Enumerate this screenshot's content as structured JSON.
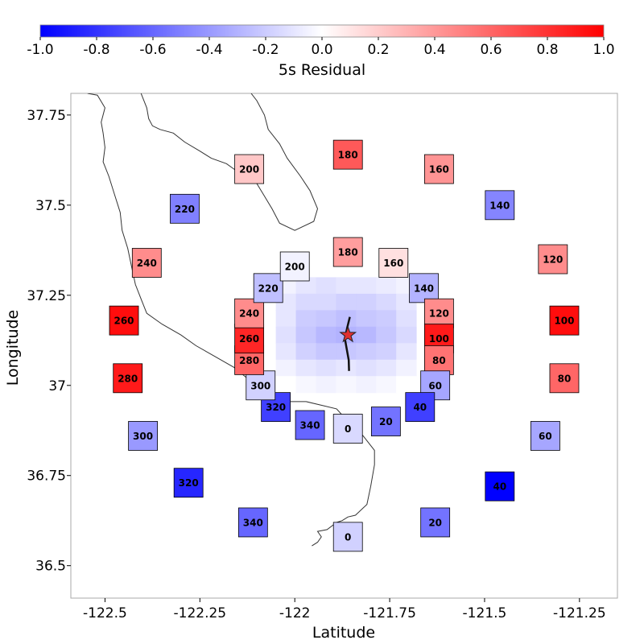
{
  "chart_data": {
    "type": "scatter",
    "xlabel": "Latitude",
    "ylabel": "Longitude",
    "xlim": [
      -122.59,
      -121.15
    ],
    "ylim": [
      36.41,
      37.81
    ],
    "xticks": [
      "-122.5",
      "-122.25",
      "-122",
      "-121.75",
      "-121.5",
      "-121.25"
    ],
    "xtick_values": [
      -122.5,
      -122.25,
      -122.0,
      -121.75,
      -121.5,
      -121.25
    ],
    "yticks": [
      "36.5",
      "36.75",
      "37",
      "37.25",
      "37.5",
      "37.75"
    ],
    "ytick_values": [
      36.5,
      36.75,
      37.0,
      37.25,
      37.5,
      37.75
    ],
    "grid": false,
    "colorbar": {
      "label": "5s Residual",
      "range": [
        -1.0,
        1.0
      ],
      "ticks": [
        "-1.0",
        "-0.8",
        "-0.6",
        "-0.4",
        "-0.2",
        "0.0",
        "0.2",
        "0.4",
        "0.6",
        "0.8",
        "1.0"
      ],
      "tick_values": [
        -1.0,
        -0.8,
        -0.6,
        -0.4,
        -0.2,
        0.0,
        0.2,
        0.4,
        0.6,
        0.8,
        1.0
      ],
      "colormap": "bwr",
      "low_color": "#0000ff",
      "mid_color": "#ffffff",
      "high_color": "#ff0000",
      "position": "top"
    },
    "outer_ring": [
      {
        "label": "180",
        "x": -121.86,
        "y": 37.64,
        "residual": 0.65
      },
      {
        "label": "160",
        "x": -121.62,
        "y": 37.6,
        "residual": 0.42
      },
      {
        "label": "140",
        "x": -121.46,
        "y": 37.5,
        "residual": -0.48
      },
      {
        "label": "120",
        "x": -121.32,
        "y": 37.35,
        "residual": 0.45
      },
      {
        "label": "100",
        "x": -121.29,
        "y": 37.18,
        "residual": 0.95
      },
      {
        "label": "80",
        "x": -121.29,
        "y": 37.02,
        "residual": 0.6
      },
      {
        "label": "60",
        "x": -121.34,
        "y": 36.86,
        "residual": -0.35
      },
      {
        "label": "40",
        "x": -121.46,
        "y": 36.72,
        "residual": -1.0
      },
      {
        "label": "20",
        "x": -121.63,
        "y": 36.62,
        "residual": -0.55
      },
      {
        "label": "0",
        "x": -121.86,
        "y": 36.58,
        "residual": -0.18
      },
      {
        "label": "340",
        "x": -122.11,
        "y": 36.62,
        "residual": -0.6
      },
      {
        "label": "320",
        "x": -122.28,
        "y": 36.73,
        "residual": -0.85
      },
      {
        "label": "300",
        "x": -122.4,
        "y": 36.86,
        "residual": -0.4
      },
      {
        "label": "280",
        "x": -122.44,
        "y": 37.02,
        "residual": 0.9
      },
      {
        "label": "260",
        "x": -122.45,
        "y": 37.18,
        "residual": 0.95
      },
      {
        "label": "240",
        "x": -122.39,
        "y": 37.34,
        "residual": 0.45
      },
      {
        "label": "220",
        "x": -122.29,
        "y": 37.49,
        "residual": -0.5
      },
      {
        "label": "200",
        "x": -122.12,
        "y": 37.6,
        "residual": 0.22
      }
    ],
    "inner_ring": [
      {
        "label": "180",
        "x": -121.86,
        "y": 37.37,
        "residual": 0.38
      },
      {
        "label": "160",
        "x": -121.74,
        "y": 37.34,
        "residual": 0.12
      },
      {
        "label": "140",
        "x": -121.66,
        "y": 37.27,
        "residual": -0.3
      },
      {
        "label": "120",
        "x": -121.62,
        "y": 37.2,
        "residual": 0.45
      },
      {
        "label": "100",
        "x": -121.62,
        "y": 37.13,
        "residual": 0.9
      },
      {
        "label": "80",
        "x": -121.62,
        "y": 37.07,
        "residual": 0.55
      },
      {
        "label": "60",
        "x": -121.63,
        "y": 37.0,
        "residual": -0.35
      },
      {
        "label": "40",
        "x": -121.67,
        "y": 36.94,
        "residual": -0.75
      },
      {
        "label": "20",
        "x": -121.76,
        "y": 36.9,
        "residual": -0.55
      },
      {
        "label": "0",
        "x": -121.86,
        "y": 36.88,
        "residual": -0.15
      },
      {
        "label": "340",
        "x": -121.96,
        "y": 36.89,
        "residual": -0.6
      },
      {
        "label": "320",
        "x": -122.05,
        "y": 36.94,
        "residual": -0.75
      },
      {
        "label": "300",
        "x": -122.09,
        "y": 37.0,
        "residual": -0.18
      },
      {
        "label": "280",
        "x": -122.12,
        "y": 37.07,
        "residual": 0.6
      },
      {
        "label": "260",
        "x": -122.12,
        "y": 37.13,
        "residual": 0.85
      },
      {
        "label": "240",
        "x": -122.12,
        "y": 37.2,
        "residual": 0.45
      },
      {
        "label": "220",
        "x": -122.07,
        "y": 37.27,
        "residual": -0.25
      },
      {
        "label": "200",
        "x": -122.0,
        "y": 37.33,
        "residual": -0.05
      }
    ],
    "heatmap": {
      "x_range": [
        -122.05,
        -121.68
      ],
      "y_range": [
        36.98,
        37.3
      ],
      "columns": 7,
      "rows": 7,
      "values": [
        [
          -0.05,
          -0.1,
          -0.12,
          -0.1,
          -0.1,
          -0.08,
          -0.05
        ],
        [
          -0.1,
          -0.15,
          -0.15,
          -0.18,
          -0.18,
          -0.15,
          -0.1
        ],
        [
          -0.1,
          -0.2,
          -0.22,
          -0.25,
          -0.22,
          -0.2,
          -0.12
        ],
        [
          -0.12,
          -0.22,
          -0.28,
          -0.3,
          -0.28,
          -0.22,
          -0.15
        ],
        [
          -0.1,
          -0.18,
          -0.22,
          -0.22,
          -0.2,
          -0.18,
          -0.1
        ],
        [
          -0.05,
          -0.1,
          -0.12,
          -0.1,
          -0.12,
          -0.1,
          -0.05
        ],
        [
          0.0,
          -0.03,
          -0.05,
          -0.03,
          -0.05,
          -0.03,
          0.0
        ]
      ]
    },
    "epicenter": {
      "x": -121.86,
      "y": 37.14,
      "color": "#e03030"
    },
    "fault_trace": [
      [
        -121.855,
        37.19
      ],
      [
        -121.862,
        37.16
      ],
      [
        -121.868,
        37.13
      ],
      [
        -121.863,
        37.1
      ],
      [
        -121.858,
        37.07
      ],
      [
        -121.857,
        37.04
      ]
    ],
    "coastline": [
      [
        -122.546,
        37.81
      ],
      [
        -122.52,
        37.805
      ],
      [
        -122.5,
        37.77
      ],
      [
        -122.51,
        37.73
      ],
      [
        -122.505,
        37.7
      ],
      [
        -122.5,
        37.66
      ],
      [
        -122.505,
        37.62
      ],
      [
        -122.49,
        37.58
      ],
      [
        -122.475,
        37.53
      ],
      [
        -122.46,
        37.48
      ],
      [
        -122.455,
        37.43
      ],
      [
        -122.44,
        37.38
      ],
      [
        -122.43,
        37.33
      ],
      [
        -122.42,
        37.28
      ],
      [
        -122.405,
        37.24
      ],
      [
        -122.39,
        37.2
      ],
      [
        -122.35,
        37.17
      ],
      [
        -122.3,
        37.14
      ],
      [
        -122.26,
        37.11
      ],
      [
        -122.21,
        37.08
      ],
      [
        -122.16,
        37.05
      ],
      [
        -122.12,
        37.015
      ],
      [
        -122.07,
        36.975
      ],
      [
        -122.03,
        36.955
      ],
      [
        -121.97,
        36.955
      ],
      [
        -121.93,
        36.945
      ],
      [
        -121.89,
        36.935
      ],
      [
        -121.86,
        36.9
      ],
      [
        -121.82,
        36.86
      ],
      [
        -121.79,
        36.82
      ],
      [
        -121.79,
        36.78
      ],
      [
        -121.8,
        36.72
      ],
      [
        -121.81,
        36.67
      ],
      [
        -121.84,
        36.64
      ],
      [
        -121.86,
        36.635
      ],
      [
        -121.875,
        36.625
      ],
      [
        -121.89,
        36.62
      ],
      [
        -121.915,
        36.6
      ],
      [
        -121.94,
        36.595
      ],
      [
        -121.93,
        36.58
      ],
      [
        -121.94,
        36.565
      ],
      [
        -121.955,
        36.555
      ]
    ],
    "bay_shore": [
      [
        -122.405,
        37.81
      ],
      [
        -122.39,
        37.77
      ],
      [
        -122.385,
        37.74
      ],
      [
        -122.375,
        37.72
      ],
      [
        -122.355,
        37.71
      ],
      [
        -122.32,
        37.7
      ],
      [
        -122.29,
        37.675
      ],
      [
        -122.25,
        37.65
      ],
      [
        -122.22,
        37.63
      ],
      [
        -122.18,
        37.615
      ],
      [
        -122.16,
        37.6
      ],
      [
        -122.13,
        37.58
      ],
      [
        -122.1,
        37.56
      ],
      [
        -122.08,
        37.525
      ],
      [
        -122.06,
        37.49
      ],
      [
        -122.04,
        37.45
      ],
      [
        -122.0,
        37.43
      ],
      [
        -121.95,
        37.455
      ],
      [
        -121.94,
        37.49
      ],
      [
        -121.96,
        37.54
      ],
      [
        -121.985,
        37.58
      ],
      [
        -122.02,
        37.63
      ],
      [
        -122.04,
        37.67
      ],
      [
        -122.07,
        37.71
      ],
      [
        -122.08,
        37.75
      ],
      [
        -122.1,
        37.79
      ],
      [
        -122.115,
        37.81
      ]
    ]
  }
}
